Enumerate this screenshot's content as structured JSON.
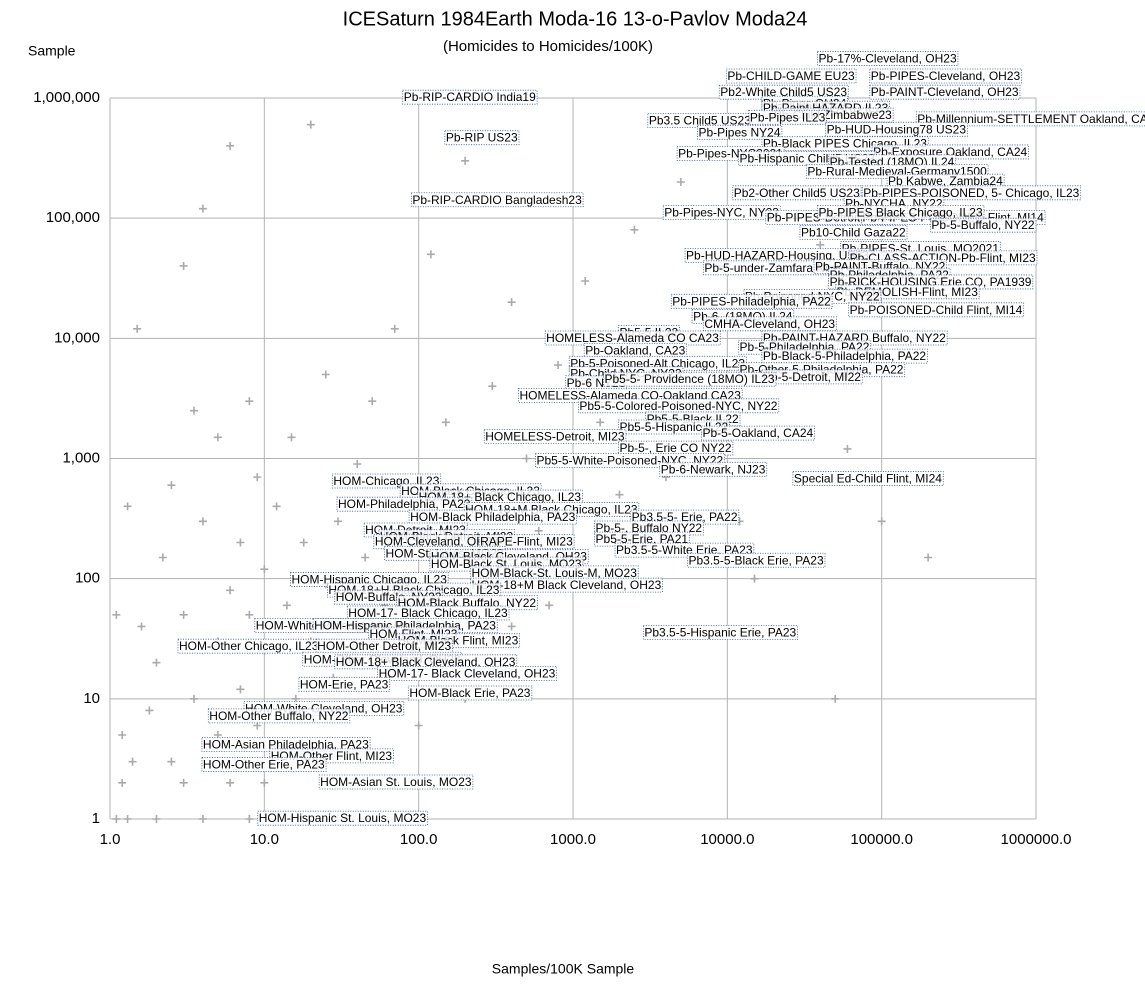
{
  "chart_data": {
    "type": "scatter",
    "title": "ICESaturn 1984Earth Moda-16 13-o-Pavlov Moda24",
    "subtitle": "(Homicides to Homicides/100K)",
    "x_label": "Samples/100K Sample",
    "y_label": "Sample",
    "log_x": true,
    "log_y": true,
    "grid": true,
    "color": "#aaaaaa",
    "xlim": [
      1,
      1000000
    ],
    "ylim": [
      1,
      1000000
    ],
    "xticks": [
      {
        "value": 1,
        "label": "1.0"
      },
      {
        "value": 10,
        "label": "10.0"
      },
      {
        "value": 100,
        "label": "100.0"
      },
      {
        "value": 1000,
        "label": "1000.0"
      },
      {
        "value": 10000,
        "label": "10000.0"
      },
      {
        "value": 100000,
        "label": "100000.0"
      },
      {
        "value": 1000000,
        "label": "1000000.0"
      }
    ],
    "yticks": [
      1,
      10,
      100,
      {
        "value": 1000,
        "label": "1,000"
      },
      {
        "value": 10000,
        "label": "10,000"
      },
      {
        "value": 100000,
        "label": "100,000"
      },
      {
        "value": 1000000,
        "label": "1,000,000"
      }
    ],
    "x": [
      1.1,
      1.2,
      1.3,
      1.2,
      1.1,
      1.3,
      1.5,
      1.4,
      1.6,
      1.8,
      2,
      2,
      2.2,
      2.5,
      2.5,
      3,
      3,
      3,
      3.5,
      3.5,
      4,
      4,
      4,
      5,
      5,
      5,
      6,
      6,
      6,
      7,
      7,
      8,
      8,
      8,
      9,
      9,
      10,
      10,
      10,
      12,
      12,
      14,
      15,
      15,
      16,
      18,
      20,
      20,
      22,
      25,
      25,
      28,
      30,
      30,
      35,
      40,
      40,
      45,
      50,
      50,
      60,
      60,
      70,
      70,
      80,
      90,
      100,
      100,
      120,
      120,
      150,
      150,
      180,
      200,
      200,
      250,
      300,
      300,
      400,
      400,
      500,
      600,
      700,
      800,
      1000,
      1200,
      1500,
      2000,
      2500,
      3000,
      4000,
      5000,
      7000,
      9000,
      12000,
      15000,
      20000,
      30000,
      40000,
      50000,
      60000,
      100000,
      200000
    ],
    "values": [
      1,
      2,
      1,
      5,
      50,
      400,
      12000,
      3,
      40,
      8,
      1,
      20,
      150,
      3,
      600,
      2,
      50,
      40000,
      10,
      2500,
      1,
      300,
      120000,
      5,
      30,
      1500,
      2,
      80,
      400000,
      12,
      200,
      1,
      50,
      3000,
      6,
      700,
      2,
      25,
      120,
      400,
      4,
      60,
      1,
      1500,
      10,
      200,
      30,
      600000,
      3,
      90,
      5000,
      15,
      300,
      1,
      40,
      900,
      8,
      150,
      3000,
      20,
      60,
      400,
      2,
      12000,
      100,
      25,
      600,
      6,
      50000,
      200,
      30,
      2000,
      80,
      300000,
      10,
      500,
      150,
      4000,
      40,
      20000,
      1000,
      250,
      60,
      6000,
      150,
      30000,
      2000,
      500,
      80000,
      12000,
      700,
      200000,
      3000,
      40000,
      300,
      100,
      5000,
      800000,
      60000,
      10,
      1200,
      300,
      150
    ],
    "annotations": [
      {
        "text": "Pb-17%-Cleveland, OH23",
        "x": 39000,
        "y": 2100000
      },
      {
        "text": "Pb-CHILD-GAME EU23",
        "x": 10000,
        "y": 1500000
      },
      {
        "text": "Pb-PIPES-Cleveland, OH23",
        "x": 85000,
        "y": 1500000
      },
      {
        "text": "Pb2-White Child5 US23",
        "x": 9000,
        "y": 1100000
      },
      {
        "text": "Pb-PAINT-Cleveland, OH23",
        "x": 85000,
        "y": 1100000
      },
      {
        "text": "Pb-RIP-CARDIO India19",
        "x": 80,
        "y": 1000000
      },
      {
        "text": "Pb-Pipes OH24",
        "x": 17000,
        "y": 890000
      },
      {
        "text": "Pb-Paint HAZARD IL23",
        "x": 17000,
        "y": 810000
      },
      {
        "text": "Pb-Child Zimbabwe23",
        "x": 20000,
        "y": 710000
      },
      {
        "text": "Pb-Millennium-SETTLEMENT Oakland, CA23",
        "x": 170000,
        "y": 660000
      },
      {
        "text": "Pb3.5 Child5 US23",
        "x": 3100,
        "y": 640000
      },
      {
        "text": "Pb-Pipes IL23",
        "x": 14000,
        "y": 680000
      },
      {
        "text": "Pb-HUD-Housing78 US23",
        "x": 44000,
        "y": 540000
      },
      {
        "text": "Pb-Pipes NY24",
        "x": 6500,
        "y": 510000
      },
      {
        "text": "Pb-RIP US23",
        "x": 150,
        "y": 460000
      },
      {
        "text": "Pb-Black PIPES Chicago, IL23",
        "x": 17000,
        "y": 410000
      },
      {
        "text": "Pb-Exposure Oakland, CA24",
        "x": 88000,
        "y": 350000
      },
      {
        "text": "Pb-Pipes-NYC2021",
        "x": 4800,
        "y": 340000
      },
      {
        "text": "Pb-Hispanic Child5 US23",
        "x": 12000,
        "y": 310000
      },
      {
        "text": "Pb-Tested (18MO) IL24",
        "x": 46000,
        "y": 290000
      },
      {
        "text": "Pb-Rural-Medieval-Germany1500",
        "x": 33000,
        "y": 240000
      },
      {
        "text": "Pb Kabwe, Zambia24",
        "x": 110000,
        "y": 200000
      },
      {
        "text": "Pb2-Other Child5 US23",
        "x": 11000,
        "y": 160000
      },
      {
        "text": "Pb-PIPES-POISONED, 5- Chicago, IL23",
        "x": 76000,
        "y": 160000
      },
      {
        "text": "Pb-RIP-CARDIO Bangladesh23",
        "x": 91,
        "y": 140000
      },
      {
        "text": "Pb-NYCHA, NY22",
        "x": 58000,
        "y": 130000
      },
      {
        "text": "Pb-Pipes-NYC, NY23",
        "x": 3900,
        "y": 110000
      },
      {
        "text": "Pb-PIPES-Detroit, MI23",
        "x": 18000,
        "y": 100000
      },
      {
        "text": "Pb-PIPES-POISONED-Flint, MI14",
        "x": 75000,
        "y": 100000
      },
      {
        "text": "Pb-PIPES Black Chicago, IL23",
        "x": 39000,
        "y": 110000
      },
      {
        "text": "Pb-5-Buffalo, NY22",
        "x": 210000,
        "y": 86000
      },
      {
        "text": "Pb10-Child Gaza22",
        "x": 30000,
        "y": 75000
      },
      {
        "text": "Pb-PIPES-St. Louis, MO2021",
        "x": 55000,
        "y": 55000
      },
      {
        "text": "Pb-HUD-HAZARD-Housing, US23",
        "x": 5400,
        "y": 48000
      },
      {
        "text": "Pb-CLASS-ACTION-Pb-Flint, MI23",
        "x": 62000,
        "y": 46000
      },
      {
        "text": "Pb-5-under-Zamfara Nigeria23",
        "x": 7100,
        "y": 38000
      },
      {
        "text": "Pb-PAINT-Buffalo, NY22",
        "x": 37000,
        "y": 39000
      },
      {
        "text": "Pb-Philadelphia, PA22",
        "x": 46000,
        "y": 33000
      },
      {
        "text": "Pb-RICK-HOUSING Erie CO, PA1939",
        "x": 46000,
        "y": 29000
      },
      {
        "text": "Pb-DEMOLISH-Flint, MI23",
        "x": 51000,
        "y": 24000
      },
      {
        "text": "Pb-Poisoned-NYC, NY22",
        "x": 13000,
        "y": 22000
      },
      {
        "text": "Pb-PIPES-Philadelphia, PA22",
        "x": 4400,
        "y": 20000
      },
      {
        "text": "Pb-POISONED-Child Flint, MI14",
        "x": 62000,
        "y": 17000
      },
      {
        "text": "Pb-6, (18MO) IL24",
        "x": 6000,
        "y": 15000
      },
      {
        "text": "CMHA-Cleveland, OH23",
        "x": 7100,
        "y": 13000
      },
      {
        "text": "Pb5-5 IL22",
        "x": 2000,
        "y": 11000
      },
      {
        "text": "HOMELESS-Alameda CO CA23",
        "x": 670,
        "y": 9900
      },
      {
        "text": "Pb-PAINT-HAZARD Buffalo, NY22",
        "x": 17000,
        "y": 9900
      },
      {
        "text": "Pb-5-Philadelphia, PA22",
        "x": 12000,
        "y": 8300
      },
      {
        "text": "Pb-Oakland, CA23",
        "x": 1200,
        "y": 7800
      },
      {
        "text": "Pb-Black-5-Philadelphia, PA22",
        "x": 17000,
        "y": 7000
      },
      {
        "text": "Pb-5-Poisoned-Alt Chicago, IL23",
        "x": 960,
        "y": 6100
      },
      {
        "text": "Pb-Other-5-Philadelphia, PA22",
        "x": 12000,
        "y": 5400
      },
      {
        "text": "Pb-Child NYC, NY23",
        "x": 960,
        "y": 5000
      },
      {
        "text": "Pb-5-Detroit, MI22",
        "x": 17000,
        "y": 4700
      },
      {
        "text": "Pb-6 NY23",
        "x": 910,
        "y": 4200
      },
      {
        "text": "Pb5-5- Providence (18MO) IL23",
        "x": 1600,
        "y": 4500
      },
      {
        "text": "HOMELESS-Alameda CO-Oakland CA23",
        "x": 450,
        "y": 3300
      },
      {
        "text": "Pb5-5-Colored-Poisoned-NYC, NY22",
        "x": 1100,
        "y": 2700
      },
      {
        "text": "Pb5-5-Black IL22",
        "x": 3000,
        "y": 2100
      },
      {
        "text": "Pb5-5-Hispanic IL22",
        "x": 2000,
        "y": 1800
      },
      {
        "text": "Pb-5-Oakland, CA24",
        "x": 6900,
        "y": 1600
      },
      {
        "text": "HOMELESS-Detroit, MI23",
        "x": 270,
        "y": 1500
      },
      {
        "text": "Pb-5-, Erie CO NY22",
        "x": 2000,
        "y": 1200
      },
      {
        "text": "Pb5-5-White-Poisoned-NYC, NY22",
        "x": 580,
        "y": 950
      },
      {
        "text": "Pb-6-Newark, NJ23",
        "x": 3700,
        "y": 800
      },
      {
        "text": "Special Ed-Child Flint, MI24",
        "x": 27000,
        "y": 670
      },
      {
        "text": "HOM-Chicago, IL23",
        "x": 28,
        "y": 640
      },
      {
        "text": "HOM-Black Chicago, IL23",
        "x": 77,
        "y": 530
      },
      {
        "text": "HOM-18+ Black Chicago, IL23",
        "x": 100,
        "y": 470
      },
      {
        "text": "HOM-Philadelphia, PA23",
        "x": 30,
        "y": 410
      },
      {
        "text": "HOM-18+M Black Chicago, IL23",
        "x": 200,
        "y": 370
      },
      {
        "text": "HOM-Black Philadelphia, PA23",
        "x": 88,
        "y": 320
      },
      {
        "text": "Pb3.5-5- Erie, PA22",
        "x": 2400,
        "y": 320
      },
      {
        "text": "Pb-5-, Buffalo NY22",
        "x": 1400,
        "y": 260
      },
      {
        "text": "HOM-Detroit, MI23",
        "x": 45,
        "y": 250
      },
      {
        "text": "HOM-Black Detroit, MI23",
        "x": 56,
        "y": 220
      },
      {
        "text": "HOM-Cleveland, OH23",
        "x": 52,
        "y": 200
      },
      {
        "text": "RAPE-Flint, MI23",
        "x": 250,
        "y": 200
      },
      {
        "text": "Pb5-5-Erie, PA21",
        "x": 1400,
        "y": 210
      },
      {
        "text": "Pb3.5-5-White Erie, PA23",
        "x": 1900,
        "y": 170
      },
      {
        "text": "HOM-St. Louis, MO23",
        "x": 61,
        "y": 160
      },
      {
        "text": "HOM-Black Cleveland, OH23",
        "x": 120,
        "y": 150
      },
      {
        "text": "HOM-Black St. Louis, MO23",
        "x": 120,
        "y": 130
      },
      {
        "text": "Pb3.5-5-Black Erie, PA23",
        "x": 5600,
        "y": 140
      },
      {
        "text": "HOM-Black-St. Louis-M, MO23",
        "x": 220,
        "y": 110
      },
      {
        "text": "HOM-Hispanic Chicago, IL23",
        "x": 15,
        "y": 97
      },
      {
        "text": "HOM-18+M Black Cleveland, OH23",
        "x": 220,
        "y": 87
      },
      {
        "text": "HOM-18+H Black Chicago, IL23",
        "x": 26,
        "y": 79
      },
      {
        "text": "HOM-Buffalo, NY22",
        "x": 29,
        "y": 69
      },
      {
        "text": "HOM-Black Buffalo, NY22",
        "x": 73,
        "y": 62
      },
      {
        "text": "HOM-17- Black Chicago, IL23",
        "x": 35,
        "y": 51
      },
      {
        "text": "HOM-White Philadelphia, PA23",
        "x": 8.8,
        "y": 40
      },
      {
        "text": "HOM-Hispanic Philadelphia, PA23",
        "x": 21,
        "y": 40
      },
      {
        "text": "HOM-Flint, MI23",
        "x": 48,
        "y": 34
      },
      {
        "text": "Pb3.5-5-Hispanic Erie, PA23",
        "x": 2900,
        "y": 35
      },
      {
        "text": "HOM-Black Flint, MI23",
        "x": 73,
        "y": 30
      },
      {
        "text": "HOM-Other Chicago, IL23",
        "x": 2.8,
        "y": 27
      },
      {
        "text": "HOM-Other Detroit, MI23",
        "x": 22,
        "y": 27
      },
      {
        "text": "HOM-Other Cleveland, OH23",
        "x": 18,
        "y": 21
      },
      {
        "text": "HOM-18+ Black Cleveland, OH23",
        "x": 29,
        "y": 20
      },
      {
        "text": "HOM-17- Black Cleveland, OH23",
        "x": 55,
        "y": 16
      },
      {
        "text": "HOM-Erie, PA23",
        "x": 17,
        "y": 13
      },
      {
        "text": "HOM-Black Erie, PA23",
        "x": 87,
        "y": 11
      },
      {
        "text": "HOM-White Cleveland, OH23",
        "x": 7.5,
        "y": 8.2
      },
      {
        "text": "HOM-Other Buffalo, NY22",
        "x": 4.4,
        "y": 7.1
      },
      {
        "text": "HOM-Asian Philadelphia, PA23",
        "x": 4.0,
        "y": 4.1
      },
      {
        "text": "HOM-Other Flint, MI23",
        "x": 11,
        "y": 3.3
      },
      {
        "text": "HOM-Other Erie, PA23",
        "x": 4.0,
        "y": 2.8
      },
      {
        "text": "HOM-Asian St. Louis, MO23",
        "x": 23,
        "y": 2.0
      },
      {
        "text": "HOM-Hispanic St. Louis, MO23",
        "x": 9.2,
        "y": 1.0
      }
    ]
  }
}
